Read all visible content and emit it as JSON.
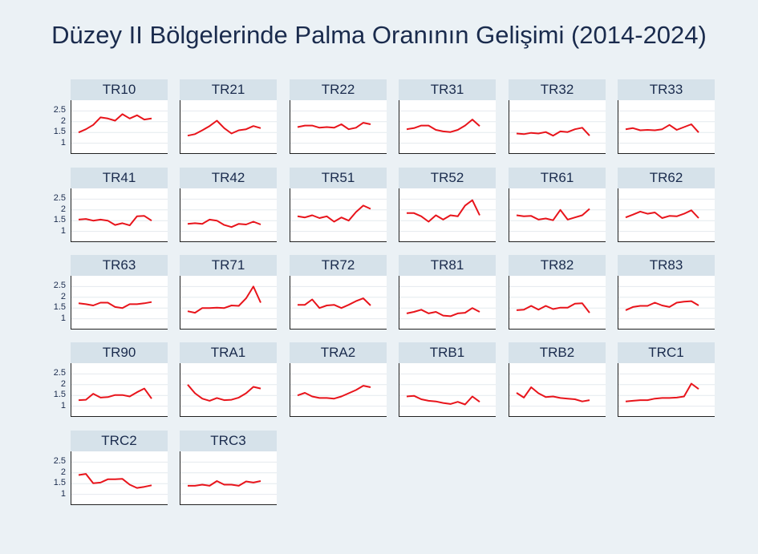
{
  "title": "Düzey II Bölgelerinde Palma Oranının Gelişimi (2014-2024)",
  "chart_data": {
    "type": "line",
    "layout": "small-multiples",
    "grid": true,
    "line_color": "#e8141b",
    "ylim": [
      0.5,
      3
    ],
    "yticks": [
      1,
      1.5,
      2,
      2.5
    ],
    "ytick_labels": [
      "1",
      "1.5",
      "2",
      "2.5"
    ],
    "x": [
      2014,
      2015,
      2016,
      2017,
      2018,
      2019,
      2020,
      2021,
      2022,
      2023,
      2024
    ],
    "panels": [
      {
        "name": "TR10",
        "values": [
          1.5,
          1.65,
          1.85,
          2.2,
          2.15,
          2.05,
          2.35,
          2.15,
          2.3,
          2.1,
          2.15
        ]
      },
      {
        "name": "TR21",
        "values": [
          1.35,
          1.42,
          1.6,
          1.8,
          2.05,
          1.7,
          1.45,
          1.6,
          1.65,
          1.8,
          1.7
        ]
      },
      {
        "name": "TR22",
        "values": [
          1.75,
          1.82,
          1.82,
          1.72,
          1.75,
          1.72,
          1.88,
          1.65,
          1.72,
          1.95,
          1.88
        ]
      },
      {
        "name": "TR31",
        "values": [
          1.65,
          1.7,
          1.82,
          1.82,
          1.62,
          1.55,
          1.52,
          1.62,
          1.82,
          2.1,
          1.8
        ]
      },
      {
        "name": "TR32",
        "values": [
          1.45,
          1.42,
          1.48,
          1.45,
          1.52,
          1.35,
          1.55,
          1.52,
          1.65,
          1.72,
          1.35
        ]
      },
      {
        "name": "TR33",
        "values": [
          1.65,
          1.7,
          1.6,
          1.62,
          1.6,
          1.65,
          1.85,
          1.62,
          1.75,
          1.88,
          1.5
        ]
      },
      {
        "name": "TR41",
        "values": [
          1.55,
          1.58,
          1.5,
          1.55,
          1.5,
          1.3,
          1.38,
          1.28,
          1.7,
          1.72,
          1.5
        ]
      },
      {
        "name": "TR42",
        "values": [
          1.35,
          1.38,
          1.35,
          1.55,
          1.5,
          1.3,
          1.2,
          1.35,
          1.32,
          1.45,
          1.32
        ]
      },
      {
        "name": "TR51",
        "values": [
          1.7,
          1.65,
          1.75,
          1.62,
          1.7,
          1.45,
          1.65,
          1.5,
          1.9,
          2.2,
          2.05
        ]
      },
      {
        "name": "TR52",
        "values": [
          1.85,
          1.85,
          1.7,
          1.45,
          1.75,
          1.55,
          1.75,
          1.7,
          2.2,
          2.45,
          1.75
        ]
      },
      {
        "name": "TR61",
        "values": [
          1.75,
          1.7,
          1.72,
          1.55,
          1.6,
          1.52,
          2.0,
          1.55,
          1.65,
          1.75,
          2.05
        ]
      },
      {
        "name": "TR62",
        "values": [
          1.65,
          1.78,
          1.92,
          1.82,
          1.88,
          1.62,
          1.72,
          1.7,
          1.82,
          1.98,
          1.62
        ]
      },
      {
        "name": "TR63",
        "values": [
          1.72,
          1.68,
          1.62,
          1.75,
          1.75,
          1.55,
          1.5,
          1.68,
          1.68,
          1.72,
          1.78
        ]
      },
      {
        "name": "TR71",
        "values": [
          1.35,
          1.28,
          1.5,
          1.5,
          1.52,
          1.5,
          1.62,
          1.6,
          1.95,
          2.5,
          1.75
        ]
      },
      {
        "name": "TR72",
        "values": [
          1.65,
          1.65,
          1.9,
          1.5,
          1.62,
          1.65,
          1.5,
          1.65,
          1.82,
          1.95,
          1.62
        ]
      },
      {
        "name": "TR81",
        "values": [
          1.25,
          1.32,
          1.42,
          1.25,
          1.32,
          1.15,
          1.12,
          1.25,
          1.28,
          1.5,
          1.32
        ]
      },
      {
        "name": "TR82",
        "values": [
          1.4,
          1.42,
          1.6,
          1.42,
          1.6,
          1.45,
          1.52,
          1.52,
          1.7,
          1.72,
          1.28
        ]
      },
      {
        "name": "TR83",
        "values": [
          1.4,
          1.55,
          1.6,
          1.6,
          1.75,
          1.62,
          1.55,
          1.75,
          1.8,
          1.82,
          1.62
        ]
      },
      {
        "name": "TR90",
        "values": [
          1.28,
          1.3,
          1.58,
          1.4,
          1.42,
          1.52,
          1.52,
          1.45,
          1.65,
          1.82,
          1.35
        ]
      },
      {
        "name": "TRA1",
        "values": [
          2.0,
          1.6,
          1.35,
          1.25,
          1.38,
          1.28,
          1.3,
          1.4,
          1.6,
          1.9,
          1.82
        ]
      },
      {
        "name": "TRA2",
        "values": [
          1.5,
          1.62,
          1.45,
          1.38,
          1.38,
          1.35,
          1.45,
          1.6,
          1.75,
          1.95,
          1.88
        ]
      },
      {
        "name": "TRB1",
        "values": [
          1.45,
          1.48,
          1.32,
          1.25,
          1.22,
          1.15,
          1.1,
          1.2,
          1.08,
          1.45,
          1.2
        ]
      },
      {
        "name": "TRB2",
        "values": [
          1.62,
          1.4,
          1.88,
          1.6,
          1.42,
          1.45,
          1.38,
          1.35,
          1.32,
          1.22,
          1.28
        ]
      },
      {
        "name": "TRC1",
        "values": [
          1.22,
          1.25,
          1.28,
          1.28,
          1.35,
          1.38,
          1.38,
          1.4,
          1.45,
          2.05,
          1.8
        ]
      },
      {
        "name": "TRC2",
        "values": [
          1.9,
          1.95,
          1.52,
          1.55,
          1.7,
          1.7,
          1.72,
          1.45,
          1.3,
          1.35,
          1.42
        ]
      },
      {
        "name": "TRC3",
        "values": [
          1.4,
          1.4,
          1.45,
          1.4,
          1.62,
          1.45,
          1.45,
          1.4,
          1.6,
          1.55,
          1.62
        ]
      }
    ]
  }
}
